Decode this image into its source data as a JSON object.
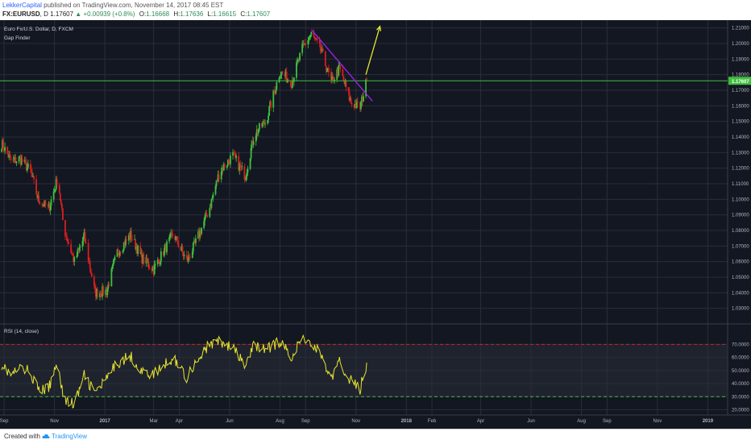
{
  "header": {
    "author": "LekkerCapital",
    "published_text": "published on TradingView.com, November 14, 2017 08:45 EST",
    "symbol": "FX:EURUSD",
    "interval": "D",
    "last": "1.17607",
    "change_arrow": "▲",
    "change": "+0.00939 (+0.8%)",
    "o_label": "O:",
    "o": "1.16668",
    "h_label": "H:",
    "h": "1.17636",
    "l_label": "L:",
    "l": "1.16615",
    "c_label": "C:",
    "c": "1.17607"
  },
  "chart_data": [
    {
      "type": "candlestick",
      "title": "Euro Fx/U.S. Dollar, D, FXCM",
      "indicator": "Gap Finder",
      "ylim": [
        1.02,
        1.215
      ],
      "price_labels": [
        "1.21000",
        "1.20000",
        "1.19000",
        "1.18000",
        "1.17000",
        "1.16000",
        "1.15000",
        "1.14000",
        "1.13000",
        "1.12000",
        "1.11000",
        "1.10000",
        "1.09000",
        "1.08000",
        "1.07000",
        "1.06000",
        "1.05000",
        "1.04000",
        "1.03000"
      ],
      "current_price_label": "1.17607",
      "current_price": 1.17607,
      "trendline": {
        "from": [
          "2017-09-08",
          1.209
        ],
        "to": [
          "2017-11-21",
          1.163
        ],
        "color": "#a020f0"
      },
      "projection_arrow": {
        "from": [
          "2017-11-13",
          1.18
        ],
        "to": [
          "2017-11-30",
          1.211
        ],
        "color": "#e6e62e"
      },
      "colors": {
        "up": "#3fbf3f",
        "down": "#d61f1f",
        "current_price": "#3fbf3f",
        "background": "#131722",
        "grid": "#2a2e39"
      },
      "x_range": [
        "2016-08-27",
        "2019-01-25"
      ],
      "anchors": [
        [
          "2016-08-29",
          1.136
        ],
        [
          "2016-09-10",
          1.124
        ],
        [
          "2016-09-20",
          1.126
        ],
        [
          "2016-10-03",
          1.118
        ],
        [
          "2016-10-12",
          1.1
        ],
        [
          "2016-10-25",
          1.094
        ],
        [
          "2016-11-05",
          1.114
        ],
        [
          "2016-11-12",
          1.082
        ],
        [
          "2016-11-25",
          1.06
        ],
        [
          "2016-12-07",
          1.076
        ],
        [
          "2016-12-20",
          1.04
        ],
        [
          "2017-01-03",
          1.041
        ],
        [
          "2017-01-16",
          1.066
        ],
        [
          "2017-02-01",
          1.077
        ],
        [
          "2017-02-15",
          1.062
        ],
        [
          "2017-03-01",
          1.055
        ],
        [
          "2017-03-25",
          1.078
        ],
        [
          "2017-04-10",
          1.06
        ],
        [
          "2017-04-20",
          1.071
        ],
        [
          "2017-05-08",
          1.095
        ],
        [
          "2017-05-20",
          1.118
        ],
        [
          "2017-06-05",
          1.128
        ],
        [
          "2017-06-20",
          1.115
        ],
        [
          "2017-07-01",
          1.142
        ],
        [
          "2017-07-15",
          1.15
        ],
        [
          "2017-08-01",
          1.182
        ],
        [
          "2017-08-15",
          1.175
        ],
        [
          "2017-08-29",
          1.198
        ],
        [
          "2017-09-08",
          1.206
        ],
        [
          "2017-09-20",
          1.195
        ],
        [
          "2017-10-02",
          1.175
        ],
        [
          "2017-10-12",
          1.184
        ],
        [
          "2017-10-26",
          1.162
        ],
        [
          "2017-11-06",
          1.159
        ],
        [
          "2017-11-14",
          1.176
        ]
      ]
    },
    {
      "type": "line",
      "title": "RSI (14, close)",
      "ylim": [
        16,
        85
      ],
      "y_ticks": [
        "70.0000",
        "60.0000",
        "50.0000",
        "40.0000",
        "30.0000",
        "20.0000"
      ],
      "overbought": 70,
      "oversold": 30,
      "series": [
        {
          "color": "#e6e62e",
          "values": [
            [
              "2016-08-29",
              55
            ],
            [
              "2016-09-10",
              46
            ],
            [
              "2016-09-20",
              52
            ],
            [
              "2016-10-03",
              49
            ],
            [
              "2016-10-12",
              35
            ],
            [
              "2016-10-25",
              36
            ],
            [
              "2016-11-05",
              58
            ],
            [
              "2016-11-12",
              28
            ],
            [
              "2016-11-25",
              24
            ],
            [
              "2016-12-07",
              46
            ],
            [
              "2016-12-20",
              33
            ],
            [
              "2017-01-03",
              43
            ],
            [
              "2017-01-16",
              56
            ],
            [
              "2017-02-01",
              61
            ],
            [
              "2017-02-15",
              49
            ],
            [
              "2017-03-01",
              47
            ],
            [
              "2017-03-25",
              60
            ],
            [
              "2017-04-10",
              45
            ],
            [
              "2017-04-20",
              56
            ],
            [
              "2017-05-08",
              70
            ],
            [
              "2017-05-20",
              72
            ],
            [
              "2017-06-05",
              67
            ],
            [
              "2017-06-20",
              53
            ],
            [
              "2017-07-01",
              70
            ],
            [
              "2017-07-15",
              66
            ],
            [
              "2017-08-01",
              72
            ],
            [
              "2017-08-15",
              61
            ],
            [
              "2017-08-29",
              75
            ],
            [
              "2017-09-08",
              71
            ],
            [
              "2017-09-20",
              62
            ],
            [
              "2017-10-02",
              43
            ],
            [
              "2017-10-12",
              56
            ],
            [
              "2017-10-26",
              42
            ],
            [
              "2017-11-06",
              36
            ],
            [
              "2017-11-14",
              56
            ]
          ]
        }
      ]
    }
  ],
  "x_axis_labels": [
    [
      "2016-09-01",
      "Sep"
    ],
    [
      "2016-11-01",
      "Nov"
    ],
    [
      "2017-01-01",
      "2017"
    ],
    [
      "2017-03-01",
      "Mar"
    ],
    [
      "2017-04-01",
      "Apr"
    ],
    [
      "2017-06-01",
      "Jun"
    ],
    [
      "2017-08-01",
      "Aug"
    ],
    [
      "2017-09-01",
      "Sep"
    ],
    [
      "2017-11-01",
      "Nov"
    ],
    [
      "2018-01-01",
      "2018"
    ],
    [
      "2018-02-01",
      "Feb"
    ],
    [
      "2018-04-01",
      "Apr"
    ],
    [
      "2018-06-01",
      "Jun"
    ],
    [
      "2018-08-01",
      "Aug"
    ],
    [
      "2018-09-01",
      "Sep"
    ],
    [
      "2018-11-01",
      "Nov"
    ],
    [
      "2019-01-01",
      "2019"
    ]
  ],
  "footer": {
    "created_with": "Created with",
    "brand": "TradingView"
  }
}
